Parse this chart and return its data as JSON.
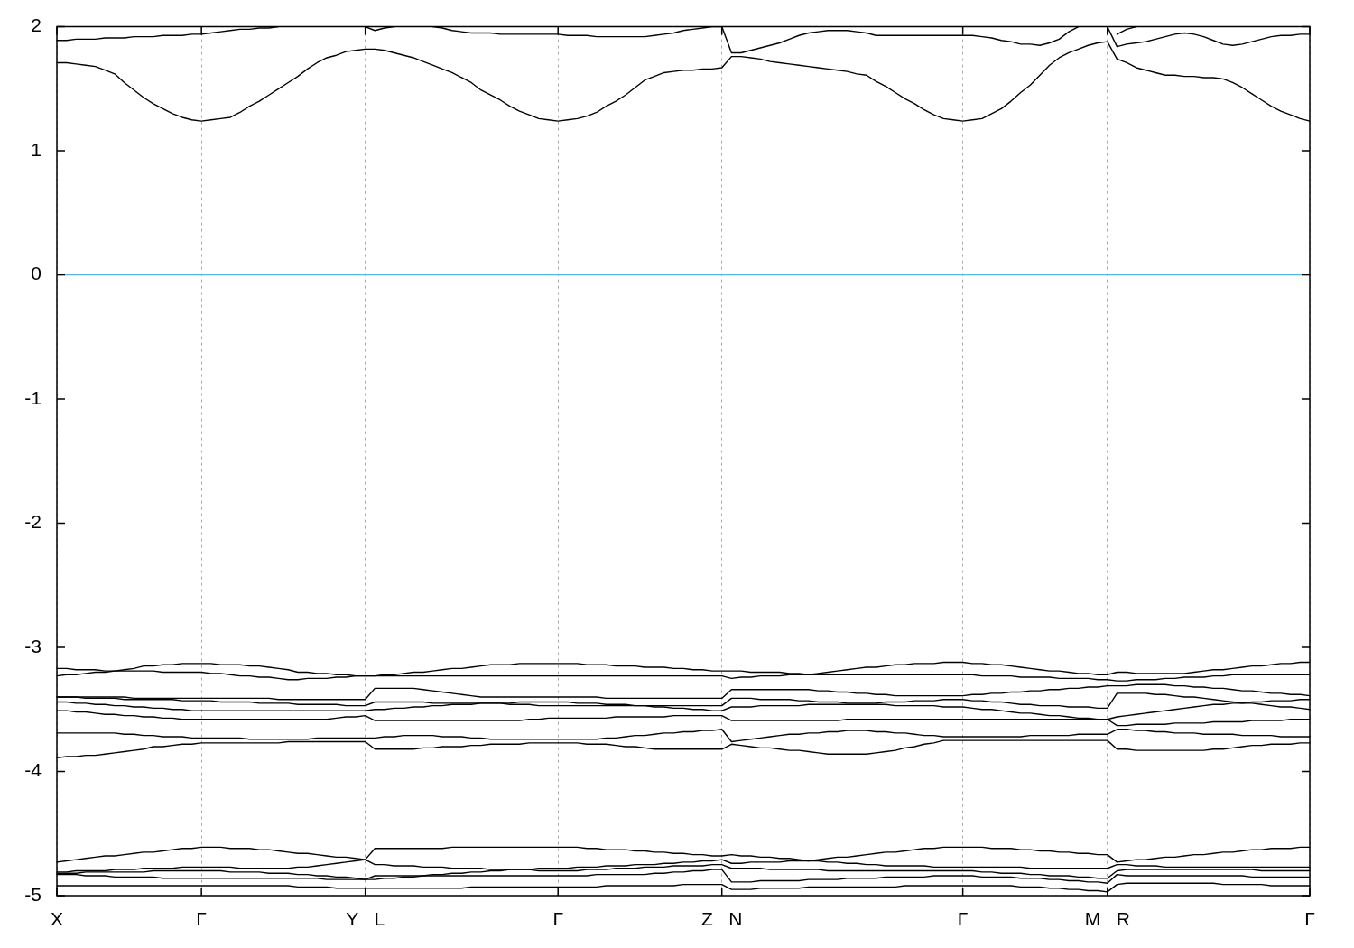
{
  "chart_data": {
    "type": "line",
    "categories": [
      "X",
      null,
      null,
      null,
      null,
      null,
      null,
      null,
      null,
      null,
      null,
      null,
      null,
      null,
      null,
      "Γ",
      null,
      null,
      null,
      null,
      null,
      null,
      null,
      null,
      null,
      null,
      null,
      null,
      null,
      null,
      null,
      null,
      "Y   L",
      null,
      null,
      null,
      null,
      null,
      null,
      null,
      null,
      null,
      null,
      null,
      null,
      null,
      null,
      null,
      null,
      null,
      null,
      null,
      "Γ",
      null,
      null,
      null,
      null,
      null,
      null,
      null,
      null,
      null,
      null,
      null,
      null,
      null,
      null,
      null,
      null,
      "Z   N",
      null,
      null,
      null,
      null,
      null,
      null,
      null,
      null,
      null,
      null,
      null,
      null,
      null,
      null,
      null,
      null,
      null,
      null,
      null,
      null,
      null,
      null,
      null,
      null,
      "Γ",
      null,
      null,
      null,
      null,
      null,
      null,
      null,
      null,
      null,
      null,
      null,
      null,
      null,
      null,
      "M   R",
      null,
      null,
      null,
      null,
      null,
      null,
      null,
      null,
      null,
      null,
      null,
      null,
      null,
      null,
      null,
      null,
      null,
      null,
      null,
      null,
      "Γ"
    ],
    "ylim": [
      -5,
      2
    ],
    "yticks": [
      -5,
      -4,
      -3,
      -2,
      -1,
      0,
      1,
      2
    ],
    "grid": "x",
    "ref_lines": [
      {
        "axis": "y",
        "value": 0,
        "color": "#56b4e9"
      }
    ],
    "series": [
      {
        "color": "#000000",
        "values": [
          1.71,
          1.71,
          1.7,
          1.69,
          1.68,
          1.65,
          1.62,
          1.55,
          1.49,
          1.43,
          1.38,
          1.34,
          1.3,
          1.27,
          1.25,
          1.24,
          1.25,
          1.26,
          1.27,
          1.31,
          1.36,
          1.4,
          1.45,
          1.5,
          1.55,
          1.6,
          1.66,
          1.71,
          1.75,
          1.77,
          1.8,
          1.81,
          1.82,
          1.82,
          1.81,
          1.79,
          1.77,
          1.75,
          1.72,
          1.69,
          1.66,
          1.63,
          1.59,
          1.55,
          1.49,
          1.45,
          1.41,
          1.36,
          1.32,
          1.29,
          1.26,
          1.25,
          1.24,
          1.25,
          1.26,
          1.28,
          1.31,
          1.36,
          1.4,
          1.45,
          1.51,
          1.57,
          1.6,
          1.63,
          1.64,
          1.65,
          1.65,
          1.66,
          1.66,
          1.67,
          1.76,
          1.76,
          1.75,
          1.74,
          1.72,
          1.71,
          1.7,
          1.69,
          1.68,
          1.67,
          1.66,
          1.65,
          1.64,
          1.62,
          1.61,
          1.56,
          1.52,
          1.47,
          1.42,
          1.38,
          1.33,
          1.29,
          1.26,
          1.25,
          1.24,
          1.25,
          1.26,
          1.3,
          1.34,
          1.4,
          1.47,
          1.53,
          1.61,
          1.69,
          1.75,
          1.79,
          1.82,
          1.85,
          1.87,
          1.88,
          1.74,
          1.71,
          1.67,
          1.65,
          1.63,
          1.61,
          1.61,
          1.6,
          1.6,
          1.59,
          1.59,
          1.58,
          1.55,
          1.51,
          1.46,
          1.41,
          1.36,
          1.32,
          1.29,
          1.26,
          1.24
        ]
      },
      {
        "color": "#000000",
        "values": [
          1.89,
          1.89,
          1.9,
          1.9,
          1.9,
          1.91,
          1.91,
          1.91,
          1.92,
          1.92,
          1.92,
          1.93,
          1.93,
          1.93,
          1.94,
          1.94,
          1.95,
          1.96,
          1.97,
          1.98,
          1.98,
          1.99,
          1.99,
          2,
          null,
          null,
          null,
          null,
          null,
          null,
          null,
          null,
          2,
          1.97,
          1.99,
          2,
          null,
          null,
          null,
          2,
          1.99,
          1.97,
          1.96,
          1.95,
          1.95,
          1.95,
          1.94,
          1.94,
          1.94,
          1.94,
          1.94,
          1.94,
          1.94,
          1.93,
          1.93,
          1.93,
          1.92,
          1.92,
          1.92,
          1.92,
          1.92,
          1.92,
          1.93,
          1.94,
          1.95,
          1.97,
          1.98,
          1.99,
          2,
          2,
          1.79,
          1.79,
          1.81,
          1.83,
          1.85,
          1.87,
          1.9,
          1.93,
          1.95,
          1.96,
          1.97,
          1.97,
          1.97,
          1.96,
          1.95,
          1.93,
          1.93,
          1.93,
          1.93,
          1.93,
          1.93,
          1.93,
          1.93,
          1.93,
          1.93,
          1.93,
          1.92,
          1.91,
          1.89,
          1.88,
          1.86,
          1.86,
          1.85,
          1.87,
          1.9,
          1.96,
          2,
          null,
          null,
          2,
          1.84,
          1.86,
          1.87,
          1.88,
          1.9,
          1.92,
          1.94,
          1.95,
          1.94,
          1.92,
          1.89,
          1.86,
          1.85,
          1.86,
          1.88,
          1.9,
          1.92,
          1.93,
          1.93,
          1.94,
          1.94
        ]
      },
      {
        "color": "#000000",
        "values": [
          null,
          null,
          null,
          null,
          null,
          null,
          null,
          null,
          null,
          null,
          null,
          null,
          null,
          null,
          null,
          null,
          null,
          null,
          null,
          null,
          null,
          null,
          null,
          null,
          null,
          null,
          null,
          null,
          null,
          null,
          null,
          null,
          null,
          null,
          null,
          null,
          null,
          null,
          null,
          null,
          null,
          null,
          null,
          null,
          null,
          null,
          null,
          null,
          null,
          null,
          null,
          null,
          null,
          null,
          null,
          null,
          null,
          null,
          null,
          null,
          null,
          null,
          null,
          null,
          null,
          null,
          null,
          null,
          null,
          null,
          null,
          null,
          null,
          null,
          null,
          null,
          null,
          null,
          null,
          null,
          null,
          null,
          null,
          null,
          null,
          null,
          null,
          null,
          null,
          null,
          null,
          null,
          null,
          null,
          null,
          null,
          null,
          null,
          null,
          null,
          null,
          null,
          null,
          null,
          null,
          null,
          null,
          null,
          null,
          null,
          1.94,
          1.98,
          2,
          null,
          null,
          null,
          null,
          null,
          null,
          null,
          null,
          null,
          null,
          null,
          null,
          null,
          null,
          null,
          null,
          null,
          null
        ]
      },
      {
        "color": "#000000",
        "values": [
          -3.23,
          -3.22,
          -3.22,
          -3.21,
          -3.2,
          -3.2,
          -3.19,
          -3.18,
          -3.17,
          -3.15,
          -3.15,
          -3.14,
          -3.14,
          -3.13,
          -3.13,
          -3.13,
          -3.13,
          -3.14,
          -3.14,
          -3.14,
          -3.15,
          -3.15,
          -3.16,
          -3.17,
          -3.18,
          -3.2,
          -3.2,
          -3.21,
          -3.21,
          -3.22,
          -3.22,
          -3.23,
          -3.23,
          -3.23,
          -3.22,
          -3.22,
          -3.21,
          -3.2,
          -3.2,
          -3.19,
          -3.18,
          -3.17,
          -3.17,
          -3.16,
          -3.15,
          -3.14,
          -3.14,
          -3.14,
          -3.13,
          -3.13,
          -3.13,
          -3.13,
          -3.13,
          -3.13,
          -3.13,
          -3.14,
          -3.14,
          -3.14,
          -3.15,
          -3.15,
          -3.15,
          -3.16,
          -3.16,
          -3.16,
          -3.17,
          -3.17,
          -3.18,
          -3.18,
          -3.19,
          -3.19,
          -3.19,
          -3.19,
          -3.2,
          -3.2,
          -3.2,
          -3.2,
          -3.21,
          -3.21,
          -3.22,
          -3.21,
          -3.2,
          -3.19,
          -3.18,
          -3.17,
          -3.16,
          -3.16,
          -3.15,
          -3.14,
          -3.14,
          -3.13,
          -3.13,
          -3.13,
          -3.12,
          -3.12,
          -3.12,
          -3.13,
          -3.13,
          -3.14,
          -3.14,
          -3.15,
          -3.16,
          -3.17,
          -3.18,
          -3.19,
          -3.19,
          -3.2,
          -3.21,
          -3.21,
          -3.22,
          -3.22,
          -3.2,
          -3.2,
          -3.21,
          -3.21,
          -3.21,
          -3.21,
          -3.21,
          -3.21,
          -3.2,
          -3.19,
          -3.18,
          -3.18,
          -3.17,
          -3.16,
          -3.15,
          -3.15,
          -3.14,
          -3.13,
          -3.13,
          -3.12,
          -3.12
        ]
      },
      {
        "color": "#000000",
        "values": [
          -3.17,
          -3.17,
          -3.18,
          -3.18,
          -3.18,
          -3.19,
          -3.19,
          -3.19,
          -3.19,
          -3.19,
          -3.19,
          -3.2,
          -3.2,
          -3.2,
          -3.2,
          -3.2,
          -3.21,
          -3.21,
          -3.22,
          -3.23,
          -3.23,
          -3.24,
          -3.24,
          -3.25,
          -3.26,
          -3.26,
          -3.25,
          -3.25,
          -3.25,
          -3.24,
          -3.24,
          -3.23,
          -3.23,
          -3.23,
          -3.23,
          -3.23,
          -3.23,
          -3.23,
          -3.23,
          -3.23,
          -3.23,
          -3.23,
          -3.23,
          -3.23,
          -3.23,
          -3.23,
          -3.23,
          -3.23,
          -3.23,
          -3.23,
          -3.23,
          -3.23,
          -3.23,
          -3.23,
          -3.23,
          -3.23,
          -3.23,
          -3.23,
          -3.23,
          -3.23,
          -3.23,
          -3.23,
          -3.23,
          -3.23,
          -3.23,
          -3.23,
          -3.23,
          -3.23,
          -3.23,
          -3.23,
          -3.25,
          -3.24,
          -3.24,
          -3.23,
          -3.23,
          -3.23,
          -3.22,
          -3.22,
          -3.22,
          -3.22,
          -3.22,
          -3.22,
          -3.22,
          -3.22,
          -3.22,
          -3.22,
          -3.22,
          -3.22,
          -3.22,
          -3.22,
          -3.22,
          -3.22,
          -3.22,
          -3.22,
          -3.22,
          -3.22,
          -3.23,
          -3.23,
          -3.23,
          -3.23,
          -3.24,
          -3.24,
          -3.24,
          -3.24,
          -3.25,
          -3.25,
          -3.25,
          -3.25,
          -3.26,
          -3.26,
          -3.27,
          -3.27,
          -3.26,
          -3.26,
          -3.26,
          -3.25,
          -3.25,
          -3.24,
          -3.24,
          -3.24,
          -3.23,
          -3.23,
          -3.22,
          -3.22,
          -3.22,
          -3.22,
          -3.22,
          -3.22,
          -3.22,
          -3.22,
          -3.22
        ]
      },
      {
        "color": "#000000",
        "values": [
          -3.4,
          -3.4,
          -3.4,
          -3.4,
          -3.4,
          -3.4,
          -3.4,
          -3.4,
          -3.41,
          -3.41,
          -3.41,
          -3.41,
          -3.41,
          -3.41,
          -3.41,
          -3.41,
          -3.41,
          -3.41,
          -3.41,
          -3.41,
          -3.41,
          -3.41,
          -3.41,
          -3.42,
          -3.42,
          -3.42,
          -3.42,
          -3.42,
          -3.42,
          -3.42,
          -3.42,
          -3.42,
          -3.42,
          -3.33,
          -3.33,
          -3.33,
          -3.33,
          -3.33,
          -3.34,
          -3.35,
          -3.36,
          -3.37,
          -3.38,
          -3.39,
          -3.4,
          -3.4,
          -3.4,
          -3.4,
          -3.4,
          -3.4,
          -3.4,
          -3.4,
          -3.4,
          -3.4,
          -3.4,
          -3.4,
          -3.4,
          -3.41,
          -3.41,
          -3.41,
          -3.41,
          -3.41,
          -3.41,
          -3.41,
          -3.41,
          -3.41,
          -3.41,
          -3.41,
          -3.41,
          -3.41,
          -3.34,
          -3.34,
          -3.34,
          -3.34,
          -3.34,
          -3.34,
          -3.34,
          -3.34,
          -3.34,
          -3.35,
          -3.35,
          -3.36,
          -3.36,
          -3.37,
          -3.37,
          -3.38,
          -3.38,
          -3.39,
          -3.39,
          -3.39,
          -3.39,
          -3.39,
          -3.39,
          -3.39,
          -3.39,
          -3.38,
          -3.38,
          -3.37,
          -3.37,
          -3.36,
          -3.36,
          -3.35,
          -3.35,
          -3.34,
          -3.34,
          -3.33,
          -3.33,
          -3.32,
          -3.32,
          -3.31,
          -3.31,
          -3.31,
          -3.3,
          -3.3,
          -3.3,
          -3.3,
          -3.31,
          -3.31,
          -3.32,
          -3.32,
          -3.33,
          -3.33,
          -3.34,
          -3.35,
          -3.35,
          -3.36,
          -3.37,
          -3.37,
          -3.38,
          -3.38,
          -3.39
        ]
      },
      {
        "color": "#000000",
        "values": [
          -3.4,
          -3.4,
          -3.4,
          -3.41,
          -3.41,
          -3.41,
          -3.41,
          -3.42,
          -3.42,
          -3.42,
          -3.42,
          -3.42,
          -3.42,
          -3.43,
          -3.43,
          -3.43,
          -3.43,
          -3.44,
          -3.44,
          -3.44,
          -3.44,
          -3.45,
          -3.45,
          -3.45,
          -3.45,
          -3.46,
          -3.46,
          -3.46,
          -3.46,
          -3.46,
          -3.47,
          -3.47,
          -3.47,
          -3.44,
          -3.44,
          -3.44,
          -3.44,
          -3.44,
          -3.44,
          -3.45,
          -3.45,
          -3.45,
          -3.45,
          -3.45,
          -3.45,
          -3.45,
          -3.45,
          -3.45,
          -3.44,
          -3.44,
          -3.44,
          -3.44,
          -3.44,
          -3.44,
          -3.45,
          -3.45,
          -3.45,
          -3.46,
          -3.46,
          -3.46,
          -3.47,
          -3.47,
          -3.47,
          -3.47,
          -3.47,
          -3.47,
          -3.47,
          -3.47,
          -3.47,
          -3.47,
          -3.41,
          -3.41,
          -3.41,
          -3.42,
          -3.42,
          -3.42,
          -3.42,
          -3.43,
          -3.43,
          -3.44,
          -3.44,
          -3.44,
          -3.45,
          -3.45,
          -3.45,
          -3.45,
          -3.44,
          -3.44,
          -3.44,
          -3.43,
          -3.43,
          -3.43,
          -3.42,
          -3.42,
          -3.42,
          -3.43,
          -3.43,
          -3.44,
          -3.44,
          -3.45,
          -3.46,
          -3.46,
          -3.47,
          -3.47,
          -3.47,
          -3.48,
          -3.48,
          -3.48,
          -3.49,
          -3.49,
          -3.37,
          -3.37,
          -3.37,
          -3.37,
          -3.38,
          -3.38,
          -3.39,
          -3.4,
          -3.4,
          -3.41,
          -3.42,
          -3.43,
          -3.44,
          -3.45,
          -3.44,
          -3.44,
          -3.43,
          -3.43,
          -3.43,
          -3.42,
          -3.42
        ]
      },
      {
        "color": "#000000",
        "values": [
          -3.44,
          -3.44,
          -3.45,
          -3.45,
          -3.46,
          -3.46,
          -3.47,
          -3.47,
          -3.48,
          -3.48,
          -3.49,
          -3.49,
          -3.5,
          -3.5,
          -3.51,
          -3.51,
          -3.51,
          -3.51,
          -3.51,
          -3.51,
          -3.51,
          -3.51,
          -3.51,
          -3.51,
          -3.51,
          -3.51,
          -3.51,
          -3.51,
          -3.51,
          -3.51,
          -3.51,
          -3.51,
          -3.51,
          -3.5,
          -3.5,
          -3.49,
          -3.49,
          -3.48,
          -3.48,
          -3.47,
          -3.47,
          -3.46,
          -3.46,
          -3.46,
          -3.45,
          -3.45,
          -3.45,
          -3.46,
          -3.46,
          -3.46,
          -3.47,
          -3.47,
          -3.47,
          -3.47,
          -3.47,
          -3.47,
          -3.47,
          -3.47,
          -3.47,
          -3.47,
          -3.47,
          -3.47,
          -3.48,
          -3.48,
          -3.49,
          -3.49,
          -3.5,
          -3.5,
          -3.51,
          -3.51,
          -3.48,
          -3.48,
          -3.48,
          -3.47,
          -3.47,
          -3.47,
          -3.47,
          -3.47,
          -3.46,
          -3.46,
          -3.46,
          -3.46,
          -3.46,
          -3.46,
          -3.46,
          -3.46,
          -3.46,
          -3.47,
          -3.47,
          -3.47,
          -3.47,
          -3.47,
          -3.48,
          -3.48,
          -3.48,
          -3.49,
          -3.5,
          -3.5,
          -3.51,
          -3.52,
          -3.53,
          -3.53,
          -3.54,
          -3.55,
          -3.55,
          -3.56,
          -3.57,
          -3.57,
          -3.58,
          -3.58,
          -3.56,
          -3.55,
          -3.54,
          -3.53,
          -3.52,
          -3.51,
          -3.5,
          -3.49,
          -3.48,
          -3.47,
          -3.46,
          -3.46,
          -3.45,
          -3.45,
          -3.45,
          -3.46,
          -3.47,
          -3.48,
          -3.48,
          -3.49,
          -3.5
        ]
      },
      {
        "color": "#000000",
        "values": [
          -3.51,
          -3.51,
          -3.52,
          -3.52,
          -3.53,
          -3.54,
          -3.54,
          -3.55,
          -3.55,
          -3.56,
          -3.56,
          -3.57,
          -3.57,
          -3.58,
          -3.58,
          -3.58,
          -3.58,
          -3.58,
          -3.58,
          -3.58,
          -3.58,
          -3.58,
          -3.58,
          -3.58,
          -3.58,
          -3.58,
          -3.58,
          -3.58,
          -3.58,
          -3.57,
          -3.56,
          -3.56,
          -3.55,
          -3.59,
          -3.59,
          -3.59,
          -3.59,
          -3.59,
          -3.59,
          -3.59,
          -3.59,
          -3.59,
          -3.59,
          -3.59,
          -3.59,
          -3.59,
          -3.59,
          -3.59,
          -3.59,
          -3.58,
          -3.58,
          -3.57,
          -3.57,
          -3.57,
          -3.57,
          -3.57,
          -3.57,
          -3.57,
          -3.56,
          -3.56,
          -3.56,
          -3.56,
          -3.56,
          -3.56,
          -3.55,
          -3.55,
          -3.55,
          -3.55,
          -3.55,
          -3.55,
          -3.59,
          -3.59,
          -3.59,
          -3.59,
          -3.59,
          -3.59,
          -3.59,
          -3.59,
          -3.59,
          -3.59,
          -3.59,
          -3.59,
          -3.58,
          -3.58,
          -3.58,
          -3.58,
          -3.58,
          -3.58,
          -3.58,
          -3.58,
          -3.58,
          -3.58,
          -3.58,
          -3.58,
          -3.58,
          -3.58,
          -3.58,
          -3.58,
          -3.58,
          -3.58,
          -3.58,
          -3.58,
          -3.58,
          -3.58,
          -3.58,
          -3.58,
          -3.58,
          -3.58,
          -3.58,
          -3.58,
          -3.63,
          -3.63,
          -3.62,
          -3.62,
          -3.62,
          -3.62,
          -3.61,
          -3.61,
          -3.61,
          -3.61,
          -3.6,
          -3.6,
          -3.6,
          -3.6,
          -3.59,
          -3.59,
          -3.59,
          -3.59,
          -3.58,
          -3.58,
          -3.58
        ]
      },
      {
        "color": "#000000",
        "values": [
          -3.69,
          -3.69,
          -3.69,
          -3.69,
          -3.69,
          -3.69,
          -3.69,
          -3.7,
          -3.7,
          -3.71,
          -3.71,
          -3.72,
          -3.72,
          -3.72,
          -3.73,
          -3.73,
          -3.73,
          -3.73,
          -3.73,
          -3.73,
          -3.74,
          -3.74,
          -3.74,
          -3.74,
          -3.74,
          -3.74,
          -3.74,
          -3.73,
          -3.73,
          -3.73,
          -3.73,
          -3.73,
          -3.73,
          -3.73,
          -3.72,
          -3.72,
          -3.71,
          -3.71,
          -3.71,
          -3.71,
          -3.72,
          -3.72,
          -3.72,
          -3.73,
          -3.73,
          -3.74,
          -3.74,
          -3.74,
          -3.74,
          -3.74,
          -3.74,
          -3.74,
          -3.74,
          -3.74,
          -3.74,
          -3.74,
          -3.74,
          -3.73,
          -3.73,
          -3.72,
          -3.71,
          -3.71,
          -3.7,
          -3.69,
          -3.69,
          -3.68,
          -3.68,
          -3.67,
          -3.67,
          -3.66,
          -3.76,
          -3.75,
          -3.74,
          -3.73,
          -3.72,
          -3.71,
          -3.7,
          -3.7,
          -3.69,
          -3.69,
          -3.68,
          -3.68,
          -3.67,
          -3.67,
          -3.67,
          -3.68,
          -3.68,
          -3.69,
          -3.69,
          -3.7,
          -3.71,
          -3.71,
          -3.72,
          -3.72,
          -3.72,
          -3.72,
          -3.72,
          -3.72,
          -3.72,
          -3.72,
          -3.72,
          -3.71,
          -3.71,
          -3.71,
          -3.71,
          -3.71,
          -3.7,
          -3.7,
          -3.7,
          -3.7,
          -3.66,
          -3.66,
          -3.67,
          -3.67,
          -3.68,
          -3.68,
          -3.69,
          -3.69,
          -3.69,
          -3.7,
          -3.7,
          -3.7,
          -3.7,
          -3.71,
          -3.71,
          -3.71,
          -3.71,
          -3.72,
          -3.72,
          -3.72,
          -3.72
        ]
      },
      {
        "color": "#000000",
        "values": [
          -3.89,
          -3.88,
          -3.88,
          -3.87,
          -3.87,
          -3.86,
          -3.85,
          -3.84,
          -3.83,
          -3.82,
          -3.8,
          -3.8,
          -3.79,
          -3.78,
          -3.78,
          -3.77,
          -3.77,
          -3.77,
          -3.77,
          -3.77,
          -3.77,
          -3.77,
          -3.77,
          -3.77,
          -3.76,
          -3.76,
          -3.76,
          -3.76,
          -3.76,
          -3.76,
          -3.76,
          -3.76,
          -3.76,
          -3.82,
          -3.82,
          -3.82,
          -3.82,
          -3.82,
          -3.81,
          -3.81,
          -3.8,
          -3.8,
          -3.8,
          -3.79,
          -3.79,
          -3.78,
          -3.78,
          -3.78,
          -3.78,
          -3.77,
          -3.77,
          -3.77,
          -3.77,
          -3.77,
          -3.77,
          -3.78,
          -3.78,
          -3.78,
          -3.79,
          -3.8,
          -3.8,
          -3.81,
          -3.82,
          -3.82,
          -3.82,
          -3.82,
          -3.82,
          -3.82,
          -3.82,
          -3.82,
          -3.78,
          -3.79,
          -3.8,
          -3.81,
          -3.81,
          -3.82,
          -3.83,
          -3.83,
          -3.84,
          -3.85,
          -3.86,
          -3.86,
          -3.86,
          -3.86,
          -3.86,
          -3.85,
          -3.84,
          -3.83,
          -3.81,
          -3.8,
          -3.78,
          -3.77,
          -3.75,
          -3.75,
          -3.75,
          -3.75,
          -3.75,
          -3.75,
          -3.75,
          -3.75,
          -3.75,
          -3.75,
          -3.75,
          -3.75,
          -3.75,
          -3.75,
          -3.75,
          -3.75,
          -3.75,
          -3.75,
          -3.82,
          -3.82,
          -3.83,
          -3.83,
          -3.83,
          -3.83,
          -3.83,
          -3.83,
          -3.83,
          -3.83,
          -3.82,
          -3.82,
          -3.81,
          -3.8,
          -3.79,
          -3.79,
          -3.78,
          -3.78,
          -3.78,
          -3.77,
          -3.77
        ]
      },
      {
        "color": "#000000",
        "values": [
          -4.73,
          -4.72,
          -4.71,
          -4.7,
          -4.69,
          -4.68,
          -4.68,
          -4.67,
          -4.66,
          -4.65,
          -4.65,
          -4.64,
          -4.63,
          -4.62,
          -4.62,
          -4.61,
          -4.61,
          -4.61,
          -4.62,
          -4.62,
          -4.62,
          -4.63,
          -4.63,
          -4.64,
          -4.65,
          -4.66,
          -4.66,
          -4.67,
          -4.68,
          -4.69,
          -4.69,
          -4.7,
          -4.71,
          -4.62,
          -4.62,
          -4.62,
          -4.62,
          -4.62,
          -4.62,
          -4.62,
          -4.62,
          -4.61,
          -4.61,
          -4.61,
          -4.61,
          -4.61,
          -4.61,
          -4.61,
          -4.61,
          -4.61,
          -4.61,
          -4.61,
          -4.61,
          -4.61,
          -4.61,
          -4.62,
          -4.62,
          -4.63,
          -4.63,
          -4.63,
          -4.64,
          -4.64,
          -4.65,
          -4.65,
          -4.66,
          -4.66,
          -4.67,
          -4.67,
          -4.68,
          -4.68,
          -4.67,
          -4.68,
          -4.68,
          -4.69,
          -4.69,
          -4.7,
          -4.7,
          -4.71,
          -4.72,
          -4.71,
          -4.7,
          -4.69,
          -4.69,
          -4.68,
          -4.67,
          -4.66,
          -4.65,
          -4.65,
          -4.64,
          -4.63,
          -4.62,
          -4.62,
          -4.61,
          -4.61,
          -4.61,
          -4.61,
          -4.61,
          -4.62,
          -4.62,
          -4.62,
          -4.63,
          -4.63,
          -4.64,
          -4.64,
          -4.65,
          -4.65,
          -4.66,
          -4.66,
          -4.67,
          -4.67,
          -4.73,
          -4.72,
          -4.71,
          -4.71,
          -4.7,
          -4.69,
          -4.69,
          -4.68,
          -4.67,
          -4.67,
          -4.66,
          -4.65,
          -4.65,
          -4.64,
          -4.63,
          -4.63,
          -4.62,
          -4.62,
          -4.62,
          -4.61,
          -4.61
        ]
      },
      {
        "color": "#000000",
        "values": [
          -4.81,
          -4.81,
          -4.8,
          -4.8,
          -4.8,
          -4.8,
          -4.79,
          -4.79,
          -4.79,
          -4.78,
          -4.78,
          -4.78,
          -4.78,
          -4.77,
          -4.77,
          -4.77,
          -4.77,
          -4.77,
          -4.77,
          -4.78,
          -4.78,
          -4.78,
          -4.78,
          -4.78,
          -4.78,
          -4.77,
          -4.77,
          -4.76,
          -4.75,
          -4.74,
          -4.73,
          -4.72,
          -4.71,
          -4.75,
          -4.75,
          -4.76,
          -4.76,
          -4.76,
          -4.77,
          -4.77,
          -4.77,
          -4.78,
          -4.78,
          -4.78,
          -4.78,
          -4.79,
          -4.79,
          -4.79,
          -4.79,
          -4.79,
          -4.78,
          -4.78,
          -4.78,
          -4.78,
          -4.77,
          -4.77,
          -4.77,
          -4.76,
          -4.76,
          -4.76,
          -4.75,
          -4.75,
          -4.75,
          -4.74,
          -4.74,
          -4.73,
          -4.73,
          -4.72,
          -4.72,
          -4.71,
          -4.74,
          -4.74,
          -4.73,
          -4.73,
          -4.73,
          -4.73,
          -4.72,
          -4.72,
          -4.72,
          -4.72,
          -4.73,
          -4.73,
          -4.74,
          -4.74,
          -4.75,
          -4.75,
          -4.76,
          -4.76,
          -4.76,
          -4.76,
          -4.76,
          -4.77,
          -4.77,
          -4.77,
          -4.77,
          -4.77,
          -4.77,
          -4.77,
          -4.77,
          -4.77,
          -4.77,
          -4.78,
          -4.78,
          -4.78,
          -4.78,
          -4.78,
          -4.78,
          -4.78,
          -4.78,
          -4.78,
          -4.75,
          -4.75,
          -4.76,
          -4.76,
          -4.76,
          -4.77,
          -4.77,
          -4.77,
          -4.77,
          -4.77,
          -4.77,
          -4.77,
          -4.77,
          -4.77,
          -4.77,
          -4.77,
          -4.77,
          -4.77,
          -4.77,
          -4.77,
          -4.77
        ]
      },
      {
        "color": "#000000",
        "values": [
          -4.82,
          -4.82,
          -4.82,
          -4.81,
          -4.81,
          -4.81,
          -4.81,
          -4.81,
          -4.81,
          -4.81,
          -4.8,
          -4.8,
          -4.8,
          -4.8,
          -4.8,
          -4.8,
          -4.8,
          -4.8,
          -4.81,
          -4.81,
          -4.81,
          -4.81,
          -4.82,
          -4.82,
          -4.82,
          -4.83,
          -4.83,
          -4.84,
          -4.84,
          -4.85,
          -4.85,
          -4.86,
          -4.87,
          -4.84,
          -4.84,
          -4.84,
          -4.84,
          -4.84,
          -4.84,
          -4.83,
          -4.83,
          -4.82,
          -4.82,
          -4.81,
          -4.81,
          -4.8,
          -4.8,
          -4.79,
          -4.79,
          -4.79,
          -4.8,
          -4.8,
          -4.8,
          -4.8,
          -4.8,
          -4.79,
          -4.79,
          -4.79,
          -4.78,
          -4.78,
          -4.78,
          -4.77,
          -4.77,
          -4.77,
          -4.76,
          -4.76,
          -4.76,
          -4.76,
          -4.75,
          -4.75,
          -4.78,
          -4.78,
          -4.78,
          -4.78,
          -4.79,
          -4.79,
          -4.79,
          -4.79,
          -4.79,
          -4.79,
          -4.8,
          -4.8,
          -4.8,
          -4.8,
          -4.8,
          -4.8,
          -4.8,
          -4.8,
          -4.8,
          -4.8,
          -4.8,
          -4.8,
          -4.8,
          -4.8,
          -4.8,
          -4.8,
          -4.81,
          -4.81,
          -4.82,
          -4.82,
          -4.82,
          -4.83,
          -4.83,
          -4.84,
          -4.84,
          -4.84,
          -4.85,
          -4.85,
          -4.86,
          -4.86,
          -4.8,
          -4.79,
          -4.79,
          -4.79,
          -4.79,
          -4.79,
          -4.79,
          -4.79,
          -4.79,
          -4.79,
          -4.79,
          -4.79,
          -4.79,
          -4.79,
          -4.79,
          -4.8,
          -4.8,
          -4.8,
          -4.8,
          -4.8,
          -4.8
        ]
      },
      {
        "color": "#000000",
        "values": [
          -4.83,
          -4.83,
          -4.83,
          -4.84,
          -4.84,
          -4.84,
          -4.85,
          -4.85,
          -4.85,
          -4.85,
          -4.85,
          -4.86,
          -4.86,
          -4.86,
          -4.86,
          -4.86,
          -4.86,
          -4.86,
          -4.86,
          -4.86,
          -4.86,
          -4.86,
          -4.86,
          -4.86,
          -4.86,
          -4.86,
          -4.86,
          -4.86,
          -4.87,
          -4.87,
          -4.87,
          -4.87,
          -4.87,
          -4.87,
          -4.86,
          -4.86,
          -4.85,
          -4.85,
          -4.84,
          -4.84,
          -4.84,
          -4.84,
          -4.84,
          -4.84,
          -4.84,
          -4.84,
          -4.84,
          -4.84,
          -4.84,
          -4.84,
          -4.84,
          -4.84,
          -4.84,
          -4.84,
          -4.84,
          -4.84,
          -4.83,
          -4.83,
          -4.83,
          -4.83,
          -4.83,
          -4.83,
          -4.82,
          -4.82,
          -4.81,
          -4.81,
          -4.8,
          -4.8,
          -4.79,
          -4.79,
          -4.89,
          -4.89,
          -4.89,
          -4.88,
          -4.88,
          -4.88,
          -4.88,
          -4.88,
          -4.87,
          -4.87,
          -4.87,
          -4.87,
          -4.86,
          -4.86,
          -4.86,
          -4.86,
          -4.85,
          -4.85,
          -4.85,
          -4.85,
          -4.85,
          -4.84,
          -4.84,
          -4.84,
          -4.84,
          -4.84,
          -4.85,
          -4.85,
          -4.85,
          -4.85,
          -4.86,
          -4.86,
          -4.86,
          -4.87,
          -4.87,
          -4.88,
          -4.88,
          -4.89,
          -4.89,
          -4.9,
          -4.83,
          -4.84,
          -4.84,
          -4.84,
          -4.84,
          -4.84,
          -4.84,
          -4.84,
          -4.84,
          -4.84,
          -4.84,
          -4.84,
          -4.84,
          -4.84,
          -4.85,
          -4.85,
          -4.85,
          -4.85,
          -4.85,
          -4.85,
          -4.85
        ]
      },
      {
        "color": "#000000",
        "values": [
          -4.92,
          -4.92,
          -4.92,
          -4.92,
          -4.92,
          -4.92,
          -4.92,
          -4.92,
          -4.92,
          -4.92,
          -4.92,
          -4.92,
          -4.92,
          -4.92,
          -4.92,
          -4.92,
          -4.92,
          -4.92,
          -4.92,
          -4.92,
          -4.92,
          -4.92,
          -4.92,
          -4.92,
          -4.92,
          -4.93,
          -4.93,
          -4.93,
          -4.93,
          -4.94,
          -4.94,
          -4.94,
          -4.94,
          -4.94,
          -4.94,
          -4.94,
          -4.94,
          -4.94,
          -4.94,
          -4.94,
          -4.94,
          -4.94,
          -4.94,
          -4.93,
          -4.93,
          -4.93,
          -4.93,
          -4.93,
          -4.93,
          -4.93,
          -4.93,
          -4.93,
          -4.93,
          -4.93,
          -4.93,
          -4.93,
          -4.93,
          -4.92,
          -4.92,
          -4.92,
          -4.92,
          -4.92,
          -4.92,
          -4.92,
          -4.92,
          -4.91,
          -4.91,
          -4.91,
          -4.91,
          -4.91,
          -4.95,
          -4.95,
          -4.95,
          -4.94,
          -4.94,
          -4.94,
          -4.94,
          -4.94,
          -4.93,
          -4.93,
          -4.93,
          -4.93,
          -4.93,
          -4.93,
          -4.93,
          -4.93,
          -4.93,
          -4.93,
          -4.92,
          -4.92,
          -4.92,
          -4.92,
          -4.92,
          -4.92,
          -4.92,
          -4.92,
          -4.92,
          -4.92,
          -4.92,
          -4.92,
          -4.93,
          -4.93,
          -4.93,
          -4.94,
          -4.94,
          -4.95,
          -4.95,
          -4.96,
          -4.96,
          -4.97,
          -4.91,
          -4.9,
          -4.9,
          -4.9,
          -4.9,
          -4.9,
          -4.9,
          -4.9,
          -4.9,
          -4.9,
          -4.9,
          -4.91,
          -4.91,
          -4.91,
          -4.91,
          -4.91,
          -4.92,
          -4.92,
          -4.92,
          -4.92,
          -4.92
        ]
      }
    ]
  }
}
